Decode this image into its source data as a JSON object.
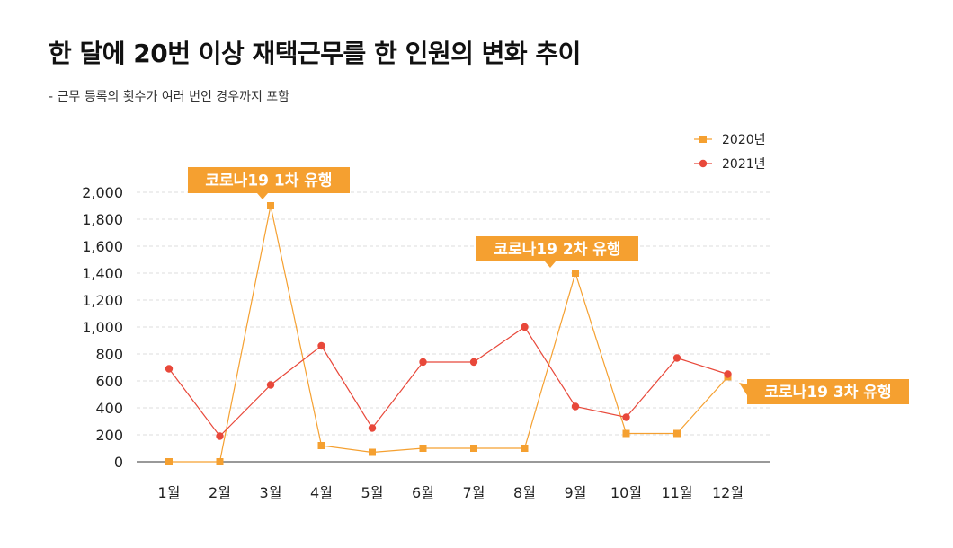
{
  "chart_data": {
    "type": "line",
    "title": "한 달에 20번 이상 재택근무를 한 인원의 변화 추이",
    "subtitle": "- 근무 등록의 횟수가 여러 번인 경우까지 포함",
    "categories": [
      "1월",
      "2월",
      "3월",
      "4월",
      "5월",
      "6월",
      "7월",
      "8월",
      "9월",
      "10월",
      "11월",
      "12월"
    ],
    "series": [
      {
        "name": "2020년",
        "color": "#f5a030",
        "marker": "square",
        "values": [
          0,
          0,
          1900,
          120,
          70,
          100,
          100,
          100,
          1400,
          210,
          210,
          630
        ]
      },
      {
        "name": "2021년",
        "color": "#e8483a",
        "marker": "circle",
        "values": [
          690,
          190,
          570,
          860,
          250,
          740,
          740,
          1000,
          410,
          330,
          770,
          650
        ]
      }
    ],
    "ylim": [
      0,
      2000
    ],
    "yticks": [
      0,
      200,
      400,
      600,
      800,
      1000,
      1200,
      1400,
      1600,
      1800,
      2000
    ],
    "ytick_labels": [
      "0",
      "200",
      "400",
      "600",
      "800",
      "1,000",
      "1,200",
      "1,400",
      "1,600",
      "1,800",
      "2,000"
    ],
    "grid": true,
    "legend_position": "top-right",
    "callout_color": "#f5a030",
    "annotations": [
      {
        "text": "코로나19 1차 유행",
        "category_index": 2,
        "series_index": 0
      },
      {
        "text": "코로나19 2차 유행",
        "category_index": 8,
        "series_index": 0
      },
      {
        "text": "코로나19 3차 유행",
        "category_index": 11,
        "series_index": 0
      }
    ]
  }
}
